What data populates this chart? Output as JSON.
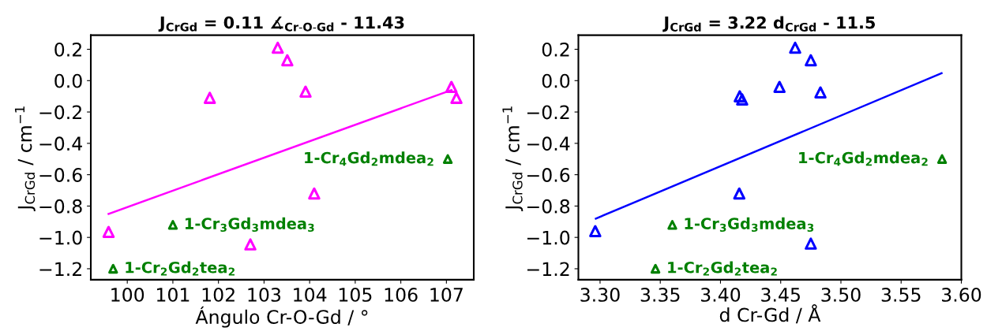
{
  "chart_data": [
    {
      "type": "scatter",
      "title": "J$_{CrGd}$ = 0.11 ∡$_{Cr-O-Gd}$ - 11.43",
      "xlabel": "Ángulo Cr-O-Gd / °",
      "ylabel": "J$_{CrGd}$ / cm$^{−1}$",
      "marker": "triangle",
      "grid": false,
      "legend": false,
      "series": [
        {
          "color": "#ff00ff",
          "x": [
            103.3,
            103.51,
            101.81,
            103.91,
            107.11,
            107.22,
            104.1,
            99.59,
            102.7
          ],
          "values": [
            0.21,
            0.13,
            -0.11,
            -0.07,
            -0.04,
            -0.11,
            -0.72,
            -0.965,
            -1.045
          ]
        },
        {
          "color": "#008000",
          "x": [
            107.03,
            101.0,
            99.69
          ],
          "values": [
            -0.5,
            -0.92,
            -1.2
          ]
        },
        {
          "type": "line",
          "marker": "none",
          "color": "#ff00ff",
          "x": [
            99.59,
            107.11
          ],
          "values": [
            -0.85,
            -0.06
          ]
        }
      ],
      "annotations": [
        {
          "text": "1-Cr$_{4}$Gd$_{2}$mdea$_{2}$",
          "x": 107.03,
          "y": -0.5
        },
        {
          "text": "1-Cr$_{3}$Gd$_{3}$mdea$_{3}$",
          "x": 101.0,
          "y": -0.92
        },
        {
          "text": "1-Cr$_{2}$Gd$_{2}$tea$_{2}$",
          "x": 99.69,
          "y": -1.2
        }
      ],
      "xlim": [
        99.2,
        107.6
      ],
      "xticks": [
        100,
        101,
        102,
        103,
        104,
        105,
        106,
        107
      ],
      "ylim": [
        -1.27,
        0.29
      ],
      "yticks": [
        {
          "value": 0.2,
          "label": "0.2"
        },
        {
          "value": 0.0,
          "label": "0.0"
        },
        {
          "value": -0.2,
          "label": "−0.2"
        },
        {
          "value": -0.4,
          "label": "−0.4"
        },
        {
          "value": -0.6,
          "label": "−0.6"
        },
        {
          "value": -0.8,
          "label": "−0.8"
        },
        {
          "value": -1.0,
          "label": "−1.0"
        },
        {
          "value": -1.2,
          "label": "−1.2"
        }
      ]
    },
    {
      "type": "scatter",
      "title": "J$_{CrGd}$ = 3.22 d$_{CrGd}$ - 11.5",
      "xlabel": "d Cr-Gd / Å",
      "ylabel": "J$_{CrGd}$ / cm$^{−1}$",
      "marker": "triangle",
      "grid": false,
      "legend": false,
      "series": [
        {
          "color": "#0000ff",
          "x": [
            3.296,
            3.4156,
            3.416,
            3.418,
            3.449,
            3.462,
            3.475,
            3.483,
            3.475
          ],
          "values": [
            -0.96,
            -0.72,
            -0.1,
            -0.12,
            -0.04,
            0.21,
            0.13,
            -0.075,
            -1.04
          ]
        },
        {
          "color": "#008000",
          "x": [
            3.584,
            3.36,
            3.346
          ],
          "values": [
            -0.5,
            -0.92,
            -1.2
          ]
        },
        {
          "type": "line",
          "marker": "none",
          "color": "#0000ff",
          "x": [
            3.2965,
            3.5836
          ],
          "values": [
            -0.88,
            0.047
          ]
        }
      ],
      "annotations": [
        {
          "text": "1-Cr$_{4}$Gd$_{2}$mdea$_{2}$",
          "x": 3.584,
          "y": -0.5
        },
        {
          "text": "1-Cr$_{3}$Gd$_{3}$mdea$_{3}$",
          "x": 3.36,
          "y": -0.92
        },
        {
          "text": "1-Cr$_{2}$Gd$_{2}$tea$_{2}$",
          "x": 3.346,
          "y": -1.2
        }
      ],
      "xlim": [
        3.282,
        3.6
      ],
      "xticks": [
        {
          "value": 3.3,
          "label": "3.30"
        },
        {
          "value": 3.35,
          "label": "3.35"
        },
        {
          "value": 3.4,
          "label": "3.40"
        },
        {
          "value": 3.45,
          "label": "3.45"
        },
        {
          "value": 3.5,
          "label": "3.50"
        },
        {
          "value": 3.55,
          "label": "3.55"
        },
        {
          "value": 3.6,
          "label": "3.60"
        }
      ],
      "ylim": [
        -1.27,
        0.29
      ],
      "yticks": [
        {
          "value": 0.2,
          "label": "0.2"
        },
        {
          "value": 0.0,
          "label": "0.0"
        },
        {
          "value": -0.2,
          "label": "−0.2"
        },
        {
          "value": -0.4,
          "label": "−0.4"
        },
        {
          "value": -0.6,
          "label": "−0.6"
        },
        {
          "value": -0.8,
          "label": "−0.8"
        },
        {
          "value": -1.0,
          "label": "−1.0"
        },
        {
          "value": -1.2,
          "label": "−1.2"
        }
      ]
    }
  ]
}
